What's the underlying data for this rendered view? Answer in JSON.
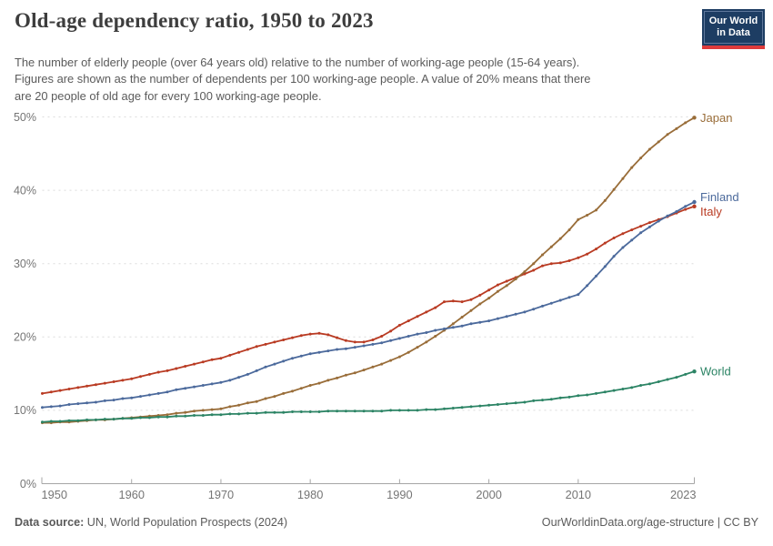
{
  "header": {
    "title": "Old-age dependency ratio, 1950 to 2023",
    "logo": {
      "line1": "Our World",
      "line2": "in Data"
    }
  },
  "subtitle": {
    "lines": [
      "The number of elderly people (over 64 years old) relative to the number of working-age people (15-64 years).",
      "Figures are shown as the number of dependents per 100 working-age people. A value of 20% means that there",
      "are 20 people of old age for every 100 working-age people."
    ]
  },
  "footer": {
    "source_label": "Data source:",
    "source_text": " UN, World Population Prospects (2024)",
    "right_text": "OurWorldinData.org/age-structure | CC BY"
  },
  "colors": {
    "japan": "#996d39",
    "finland": "#4c6a9c",
    "italy": "#b93b23",
    "world": "#2c8465",
    "grid": "#dcdcdc",
    "axis": "#a6a6a6",
    "tick_text": "#757575",
    "logo_bg": "#1d3d63",
    "logo_stripe": "#dd3b3b"
  },
  "chart_data": {
    "type": "line",
    "title": "Old-age dependency ratio, 1950 to 2023",
    "xlabel": "",
    "ylabel": "",
    "unit": "%",
    "ylim": [
      0,
      50
    ],
    "yticks": [
      0,
      10,
      20,
      30,
      40,
      50
    ],
    "xticks": [
      1950,
      1960,
      1970,
      1980,
      1990,
      2000,
      2010,
      2023
    ],
    "grid": "horizontal-dashed",
    "legend": "end-of-line-labels",
    "x": [
      1950,
      1951,
      1952,
      1953,
      1954,
      1955,
      1956,
      1957,
      1958,
      1959,
      1960,
      1961,
      1962,
      1963,
      1964,
      1965,
      1966,
      1967,
      1968,
      1969,
      1970,
      1971,
      1972,
      1973,
      1974,
      1975,
      1976,
      1977,
      1978,
      1979,
      1980,
      1981,
      1982,
      1983,
      1984,
      1985,
      1986,
      1987,
      1988,
      1989,
      1990,
      1991,
      1992,
      1993,
      1994,
      1995,
      1996,
      1997,
      1998,
      1999,
      2000,
      2001,
      2002,
      2003,
      2004,
      2005,
      2006,
      2007,
      2008,
      2009,
      2010,
      2011,
      2012,
      2013,
      2014,
      2015,
      2016,
      2017,
      2018,
      2019,
      2020,
      2021,
      2022,
      2023
    ],
    "series": [
      {
        "name": "Italy",
        "color": "#b93b23",
        "values": [
          12.3,
          12.5,
          12.7,
          12.9,
          13.1,
          13.3,
          13.5,
          13.7,
          13.9,
          14.1,
          14.3,
          14.6,
          14.9,
          15.2,
          15.4,
          15.7,
          16.0,
          16.3,
          16.6,
          16.9,
          17.1,
          17.5,
          17.9,
          18.3,
          18.7,
          19.0,
          19.3,
          19.6,
          19.9,
          20.2,
          20.4,
          20.5,
          20.3,
          19.9,
          19.5,
          19.3,
          19.3,
          19.6,
          20.1,
          20.8,
          21.6,
          22.2,
          22.8,
          23.4,
          24.0,
          24.8,
          24.9,
          24.8,
          25.1,
          25.7,
          26.4,
          27.1,
          27.6,
          28.1,
          28.6,
          29.1,
          29.7,
          30.0,
          30.1,
          30.4,
          30.8,
          31.3,
          32.0,
          32.8,
          33.5,
          34.1,
          34.6,
          35.1,
          35.6,
          36.0,
          36.4,
          36.9,
          37.4,
          37.8
        ]
      },
      {
        "name": "Japan",
        "color": "#996d39",
        "values": [
          8.3,
          8.3,
          8.4,
          8.4,
          8.5,
          8.6,
          8.7,
          8.7,
          8.8,
          8.9,
          9.0,
          9.1,
          9.2,
          9.3,
          9.4,
          9.6,
          9.7,
          9.9,
          10.0,
          10.1,
          10.2,
          10.5,
          10.7,
          11.0,
          11.2,
          11.6,
          11.9,
          12.3,
          12.6,
          13.0,
          13.4,
          13.7,
          14.1,
          14.4,
          14.8,
          15.1,
          15.5,
          15.9,
          16.3,
          16.8,
          17.3,
          17.9,
          18.6,
          19.3,
          20.1,
          20.9,
          21.8,
          22.7,
          23.6,
          24.5,
          25.3,
          26.2,
          27.0,
          27.9,
          28.9,
          30.0,
          31.2,
          32.3,
          33.4,
          34.6,
          36.0,
          36.6,
          37.3,
          38.6,
          40.1,
          41.6,
          43.1,
          44.4,
          45.6,
          46.6,
          47.6,
          48.4,
          49.2,
          49.9
        ]
      },
      {
        "name": "Finland",
        "color": "#4c6a9c",
        "values": [
          10.4,
          10.5,
          10.6,
          10.8,
          10.9,
          11.0,
          11.1,
          11.3,
          11.4,
          11.6,
          11.7,
          11.9,
          12.1,
          12.3,
          12.5,
          12.8,
          13.0,
          13.2,
          13.4,
          13.6,
          13.8,
          14.1,
          14.5,
          14.9,
          15.4,
          15.9,
          16.3,
          16.7,
          17.1,
          17.4,
          17.7,
          17.9,
          18.1,
          18.3,
          18.4,
          18.6,
          18.8,
          19.0,
          19.2,
          19.5,
          19.8,
          20.1,
          20.4,
          20.6,
          20.9,
          21.1,
          21.3,
          21.5,
          21.8,
          22.0,
          22.2,
          22.5,
          22.8,
          23.1,
          23.4,
          23.8,
          24.2,
          24.6,
          25.0,
          25.4,
          25.8,
          27.0,
          28.3,
          29.6,
          31.0,
          32.2,
          33.2,
          34.2,
          35.0,
          35.8,
          36.5,
          37.1,
          37.8,
          38.4
        ]
      },
      {
        "name": "World",
        "color": "#2c8465",
        "values": [
          8.4,
          8.5,
          8.5,
          8.6,
          8.6,
          8.7,
          8.7,
          8.8,
          8.8,
          8.9,
          8.9,
          9.0,
          9.0,
          9.1,
          9.1,
          9.2,
          9.2,
          9.3,
          9.3,
          9.4,
          9.4,
          9.5,
          9.5,
          9.6,
          9.6,
          9.7,
          9.7,
          9.7,
          9.8,
          9.8,
          9.8,
          9.8,
          9.9,
          9.9,
          9.9,
          9.9,
          9.9,
          9.9,
          9.9,
          10.0,
          10.0,
          10.0,
          10.0,
          10.1,
          10.1,
          10.2,
          10.3,
          10.4,
          10.5,
          10.6,
          10.7,
          10.8,
          10.9,
          11.0,
          11.1,
          11.3,
          11.4,
          11.5,
          11.7,
          11.8,
          12.0,
          12.1,
          12.3,
          12.5,
          12.7,
          12.9,
          13.1,
          13.4,
          13.6,
          13.9,
          14.2,
          14.5,
          14.9,
          15.3
        ]
      }
    ]
  }
}
